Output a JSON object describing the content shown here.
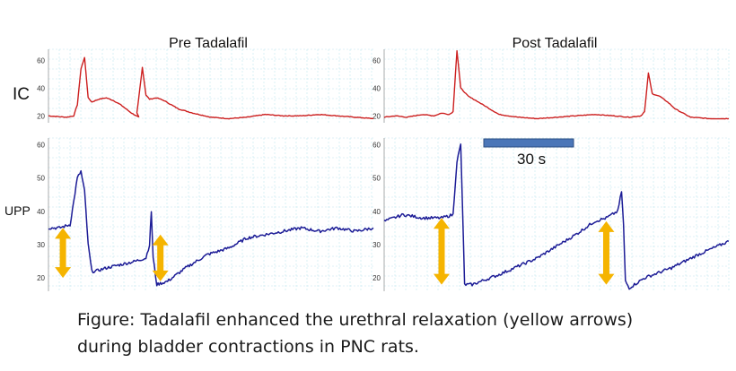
{
  "chart_data": {
    "type": "line",
    "panel_titles": [
      "Pre Tadalafil",
      "Post Tadalafil"
    ],
    "row_labels": {
      "ic": "IC",
      "upp": "UPP"
    },
    "x_units": "s",
    "scale_bar": {
      "label": "30 s",
      "seconds": 30
    },
    "colors": {
      "ic": "#cc1f1f",
      "upp": "#1c1c96",
      "arrow": "#f5b400",
      "scale_bar": "#4a76b8",
      "grid": "#bfe6ef"
    },
    "ic_axis": {
      "ylim": [
        15,
        68
      ],
      "ticks": [
        20,
        40,
        60
      ]
    },
    "upp_axis": {
      "ylim": [
        16,
        62
      ],
      "ticks": [
        20,
        30,
        40,
        50,
        60
      ]
    },
    "series": [
      {
        "name": "IC",
        "panel": "Pre Tadalafil",
        "x_range": [
          0,
          90
        ],
        "x": [
          0,
          5,
          7,
          8,
          9,
          10,
          11,
          12,
          14,
          16,
          18,
          20,
          23,
          25,
          24.5,
          26,
          27,
          28,
          30,
          32,
          34,
          36,
          40,
          45,
          50,
          55,
          60,
          65,
          70,
          75,
          80,
          85,
          90
        ],
        "values": [
          20,
          19,
          20,
          28,
          54,
          62,
          33,
          30,
          32,
          33,
          31,
          28,
          22,
          19,
          22,
          55,
          35,
          32,
          33,
          31,
          28,
          25,
          22,
          19,
          18,
          19,
          21,
          20,
          20,
          21,
          20,
          19,
          18
        ]
      },
      {
        "name": "IC",
        "panel": "Post Tadalafil",
        "x_range": [
          0,
          90
        ],
        "x": [
          0,
          3,
          6,
          10,
          13,
          15,
          17,
          18,
          19,
          20,
          22,
          24,
          27,
          30,
          35,
          40,
          45,
          50,
          55,
          60,
          64,
          67,
          68,
          69,
          70,
          72,
          74,
          76,
          80,
          85,
          90
        ],
        "values": [
          19,
          20,
          19,
          21,
          20,
          22,
          21,
          23,
          67,
          40,
          34,
          31,
          26,
          21,
          19,
          18,
          19,
          20,
          21,
          20,
          19,
          20,
          23,
          51,
          36,
          34,
          30,
          25,
          19,
          18,
          18
        ]
      },
      {
        "name": "UPP",
        "panel": "Pre Tadalafil",
        "x_range": [
          0,
          90
        ],
        "x": [
          0,
          3,
          6,
          7,
          8,
          9,
          10,
          11,
          12,
          13,
          16,
          20,
          24,
          27,
          28,
          28.5,
          29,
          30,
          33,
          38,
          44,
          50,
          55,
          60,
          65,
          70,
          75,
          80,
          85,
          90
        ],
        "values": [
          35,
          35,
          36,
          43,
          50,
          52,
          46,
          30,
          22,
          22,
          23,
          24,
          25,
          26,
          30,
          40,
          26,
          18,
          19,
          23,
          27,
          29,
          32,
          33,
          34,
          35,
          34,
          35,
          34,
          35
        ]
      },
      {
        "name": "UPP",
        "panel": "Post Tadalafil",
        "x_range": [
          0,
          90
        ],
        "x": [
          0,
          5,
          10,
          15,
          18,
          19,
          20,
          21,
          23,
          30,
          40,
          50,
          55,
          58,
          61,
          62,
          62.5,
          63,
          64,
          68,
          75,
          82,
          90
        ],
        "values": [
          37,
          39,
          38,
          38,
          39,
          55,
          60,
          18,
          18,
          21,
          26,
          33,
          37,
          38,
          40,
          46,
          36,
          19,
          17,
          20,
          23,
          27,
          31
        ]
      }
    ],
    "arrows": [
      {
        "panel": "Pre Tadalafil",
        "x": 4,
        "y_from": 20,
        "y_to": 35
      },
      {
        "panel": "Pre Tadalafil",
        "x": 31,
        "y_from": 19,
        "y_to": 33
      },
      {
        "panel": "Post Tadalafil",
        "x": 15,
        "y_from": 18,
        "y_to": 38
      },
      {
        "panel": "Post Tadalafil",
        "x": 58,
        "y_from": 18,
        "y_to": 37
      }
    ]
  },
  "caption": {
    "line1": "Figure: Tadalafil enhanced the urethral relaxation (yellow arrows)",
    "line2": "during bladder contractions in PNC rats."
  }
}
